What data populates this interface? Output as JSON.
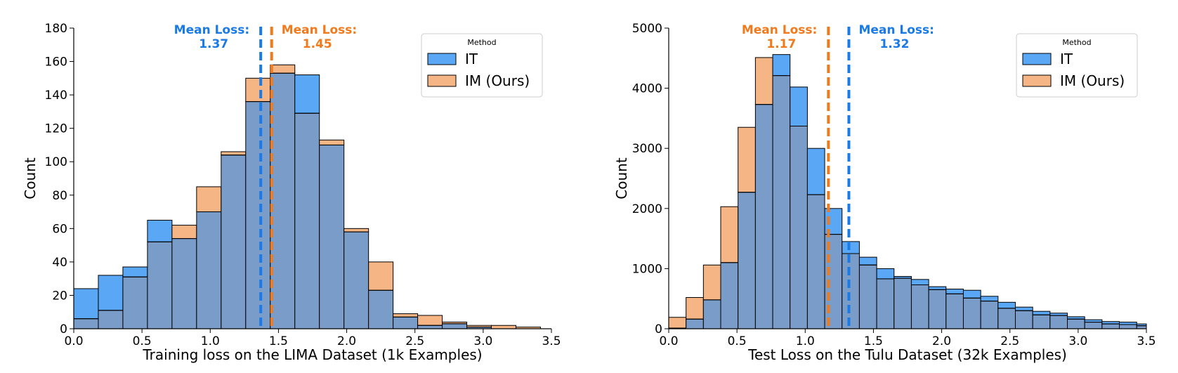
{
  "colors": {
    "it": "#5aa7f5",
    "im": "#f5b584",
    "overlap": "#7a9cc8",
    "it_mean": "#1a7ae6",
    "im_mean": "#f07a1c"
  },
  "chart_data": [
    {
      "type": "bar",
      "subtype": "overlaid-histogram",
      "title": "",
      "xlabel": "Training loss on the LIMA Dataset (1k Examples)",
      "ylabel": "Count",
      "xlim": [
        0.0,
        3.5
      ],
      "ylim": [
        0,
        180
      ],
      "xticks": [
        0.0,
        0.5,
        1.0,
        1.5,
        2.0,
        2.5,
        3.0,
        3.5
      ],
      "yticks": [
        0,
        20,
        40,
        60,
        80,
        100,
        120,
        140,
        160,
        180
      ],
      "bin_edges": [
        0.0,
        0.18,
        0.36,
        0.54,
        0.72,
        0.9,
        1.08,
        1.26,
        1.44,
        1.62,
        1.8,
        1.98,
        2.16,
        2.34,
        2.52,
        2.7,
        2.88,
        3.06,
        3.24,
        3.42
      ],
      "series": [
        {
          "name": "IT",
          "values": [
            24,
            32,
            37,
            65,
            54,
            70,
            104,
            136,
            153,
            152,
            110,
            58,
            23,
            7,
            2,
            3,
            1,
            0,
            0
          ]
        },
        {
          "name": "IM (Ours)",
          "values": [
            6,
            11,
            31,
            52,
            62,
            85,
            106,
            150,
            158,
            129,
            113,
            60,
            40,
            9,
            8,
            4,
            2,
            2,
            1
          ]
        }
      ],
      "means": [
        {
          "series": "IT",
          "value": 1.37,
          "label_line1": "Mean Loss:",
          "label_line2": "1.37",
          "side": "left"
        },
        {
          "series": "IM (Ours)",
          "value": 1.45,
          "label_line1": "Mean Loss:",
          "label_line2": "1.45",
          "side": "right"
        }
      ],
      "legend": {
        "title": "Method",
        "entries": [
          "IT",
          "IM (Ours)"
        ],
        "placement": "top-right"
      }
    },
    {
      "type": "bar",
      "subtype": "overlaid-histogram",
      "title": "",
      "xlabel": "Test Loss on the Tulu Dataset (32k Examples)",
      "ylabel": "Count",
      "xlim": [
        0.0,
        3.5
      ],
      "ylim": [
        0,
        5000
      ],
      "xticks": [
        0.0,
        0.5,
        1.0,
        1.5,
        2.0,
        2.5,
        3.0,
        3.5
      ],
      "yticks": [
        0,
        1000,
        2000,
        3000,
        4000,
        5000
      ],
      "bin_edges": [
        0.0,
        0.127,
        0.254,
        0.381,
        0.508,
        0.635,
        0.762,
        0.889,
        1.016,
        1.143,
        1.27,
        1.397,
        1.524,
        1.651,
        1.778,
        1.905,
        2.032,
        2.159,
        2.286,
        2.413,
        2.54,
        2.667,
        2.794,
        2.921,
        3.048,
        3.175,
        3.302,
        3.429,
        3.5
      ],
      "series": [
        {
          "name": "IT",
          "values": [
            10,
            160,
            480,
            1100,
            2270,
            3730,
            4560,
            4020,
            3000,
            2000,
            1450,
            1190,
            1000,
            870,
            820,
            700,
            660,
            640,
            540,
            440,
            360,
            290,
            260,
            200,
            150,
            120,
            110,
            80
          ]
        },
        {
          "name": "IM (Ours)",
          "values": [
            190,
            520,
            1060,
            2030,
            3350,
            4510,
            4210,
            3370,
            2230,
            1570,
            1250,
            1060,
            830,
            840,
            730,
            650,
            580,
            510,
            460,
            340,
            300,
            230,
            220,
            160,
            110,
            80,
            70,
            50
          ]
        }
      ],
      "means": [
        {
          "series": "IM (Ours)",
          "value": 1.17,
          "label_line1": "Mean Loss:",
          "label_line2": "1.17",
          "side": "left"
        },
        {
          "series": "IT",
          "value": 1.32,
          "label_line1": "Mean Loss:",
          "label_line2": "1.32",
          "side": "right"
        }
      ],
      "legend": {
        "title": "Method",
        "entries": [
          "IT",
          "IM (Ours)"
        ],
        "placement": "top-right"
      }
    }
  ]
}
